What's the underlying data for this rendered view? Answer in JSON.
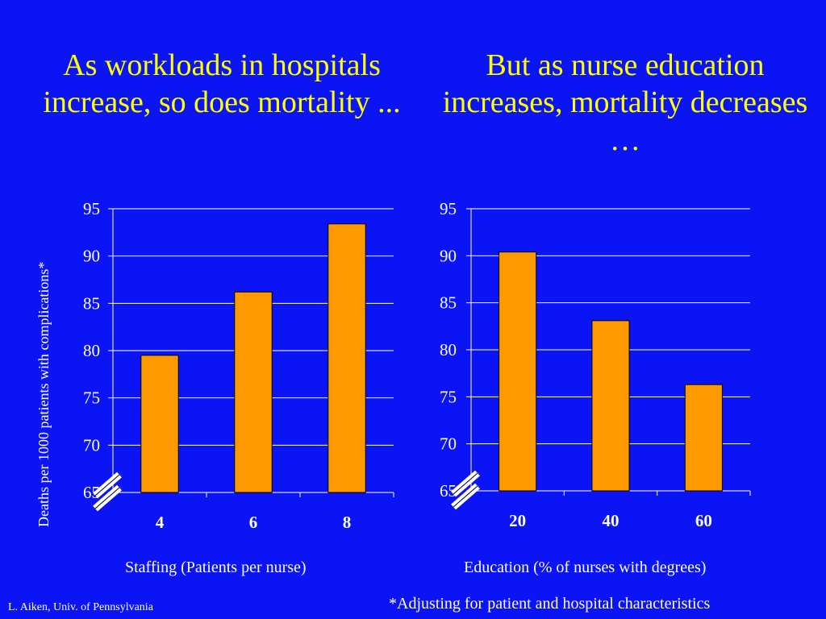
{
  "left_title": "As workloads in hospitals increase, so does mortality ...",
  "right_title": "But as nurse education increases, mortality decreases …",
  "y_axis_label": "Deaths per 1000 patients with complications*",
  "footnote": "*Adjusting for patient and hospital characteristics",
  "credit": "L. Aiken, Univ. of Pennsylvania",
  "colors": {
    "background": "#0a14f5",
    "title": "#ffff00",
    "bar": "#ff9900",
    "grid": "#ffffff"
  },
  "chart_data": [
    {
      "type": "bar",
      "categories": [
        "4",
        "6",
        "8"
      ],
      "values": [
        79.5,
        86.2,
        93.4
      ],
      "xlabel": "Staffing (Patients per nurse)",
      "ylabel": "Deaths per 1000 patients with complications*",
      "ylim": [
        65,
        95
      ],
      "yticks": [
        "65",
        "70",
        "75",
        "80",
        "85",
        "90",
        "95"
      ],
      "grid": true,
      "axis_break": true
    },
    {
      "type": "bar",
      "categories": [
        "20",
        "40",
        "60"
      ],
      "values": [
        90.4,
        83.1,
        76.3
      ],
      "xlabel": "Education (% of nurses with degrees)",
      "ylim": [
        65,
        95
      ],
      "yticks": [
        "65",
        "70",
        "75",
        "80",
        "85",
        "90",
        "95"
      ],
      "grid": true,
      "axis_break": true
    }
  ]
}
